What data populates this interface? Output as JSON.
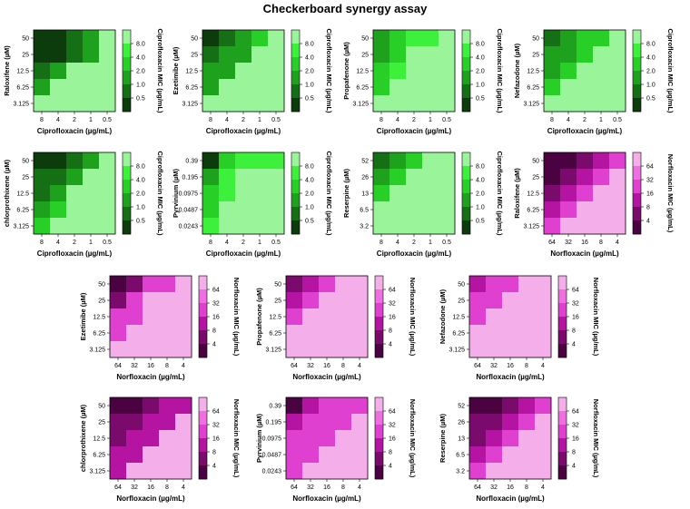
{
  "title": "Checkerboard synergy assay",
  "colors": {
    "green": [
      "#0c3b0c",
      "#157015",
      "#1ea21e",
      "#27cf27",
      "#3cf03c",
      "#9af59a"
    ],
    "magenta": [
      "#4a0340",
      "#7a0a6b",
      "#b514a2",
      "#e040cf",
      "#f06fe0",
      "#f4aee9"
    ]
  },
  "chart_data": [
    {
      "type": "heatmap",
      "palette": "green",
      "xlabel": "Ciprofloxacin (µg/mL)",
      "ylabel": "Raloxifene (µM)",
      "cbar_label": "Ciprofloxacin MIC (µg/mL)",
      "x": [
        "8",
        "4",
        "2",
        "1",
        "0.5"
      ],
      "y": [
        "50",
        "25",
        "12.5",
        "6.25",
        "3.125"
      ],
      "cbar_ticks": [
        "8.0",
        "4.0",
        "2.0",
        "1.0",
        "0.5"
      ],
      "cells": [
        [
          0,
          0,
          1,
          2,
          5
        ],
        [
          0,
          0,
          1,
          2,
          5
        ],
        [
          1,
          2,
          5,
          5,
          5
        ],
        [
          2,
          5,
          5,
          5,
          5
        ],
        [
          5,
          5,
          5,
          5,
          5
        ]
      ]
    },
    {
      "type": "heatmap",
      "palette": "green",
      "xlabel": "Ciprofloxacin (µg/mL)",
      "ylabel": "Ezetimibe (µM)",
      "cbar_label": "Ciprofloxacin MIC (µg/mL)",
      "x": [
        "8",
        "4",
        "2",
        "1",
        "0.5"
      ],
      "y": [
        "50",
        "25",
        "12.5",
        "6.25",
        "3.125"
      ],
      "cbar_ticks": [
        "8.0",
        "4.0",
        "2.0",
        "1.0",
        "0.5"
      ],
      "cells": [
        [
          0,
          1,
          2,
          3,
          5
        ],
        [
          1,
          2,
          2,
          5,
          5
        ],
        [
          2,
          2,
          5,
          5,
          5
        ],
        [
          2,
          5,
          5,
          5,
          5
        ],
        [
          5,
          5,
          5,
          5,
          5
        ]
      ]
    },
    {
      "type": "heatmap",
      "palette": "green",
      "xlabel": "Ciprofloxacin (µg/mL)",
      "ylabel": "Propafenone (µM)",
      "cbar_label": "Ciprofloxacin MIC (µg/mL)",
      "x": [
        "8",
        "4",
        "2",
        "1",
        "0.5"
      ],
      "y": [
        "50",
        "25",
        "12.5",
        "6.25",
        "3.125"
      ],
      "cbar_ticks": [
        "8.0",
        "4.0",
        "2.0",
        "1.0",
        "0.5"
      ],
      "cells": [
        [
          2,
          3,
          4,
          4,
          5
        ],
        [
          2,
          3,
          5,
          5,
          5
        ],
        [
          3,
          4,
          5,
          5,
          5
        ],
        [
          3,
          5,
          5,
          5,
          5
        ],
        [
          5,
          5,
          5,
          5,
          5
        ]
      ]
    },
    {
      "type": "heatmap",
      "palette": "green",
      "xlabel": "Ciprofloxacin (µg/mL)",
      "ylabel": "Nefazodone (µM)",
      "cbar_label": "Ciprofloxacin MIC (µg/mL)",
      "x": [
        "8",
        "4",
        "2",
        "1",
        "0.5"
      ],
      "y": [
        "50",
        "25",
        "12.5",
        "6.25",
        "3.125"
      ],
      "cbar_ticks": [
        "8.0",
        "4.0",
        "2.0",
        "1.0",
        "0.5"
      ],
      "cells": [
        [
          1,
          2,
          3,
          3,
          5
        ],
        [
          2,
          2,
          3,
          5,
          5
        ],
        [
          2,
          3,
          5,
          5,
          5
        ],
        [
          3,
          5,
          5,
          5,
          5
        ],
        [
          5,
          5,
          5,
          5,
          5
        ]
      ]
    },
    {
      "type": "heatmap",
      "palette": "green",
      "xlabel": "Ciprofloxacin (µg/mL)",
      "ylabel": "chlorprothixene (µM)",
      "cbar_label": "Ciprofloxacin MIC (µg/mL)",
      "x": [
        "8",
        "4",
        "2",
        "1",
        "0.5"
      ],
      "y": [
        "50",
        "25",
        "12.5",
        "6.25",
        "3.125"
      ],
      "cbar_ticks": [
        "8.0",
        "4.0",
        "2.0",
        "1.0",
        "0.5"
      ],
      "cells": [
        [
          0,
          0,
          1,
          2,
          5
        ],
        [
          1,
          1,
          2,
          5,
          5
        ],
        [
          1,
          2,
          5,
          5,
          5
        ],
        [
          2,
          3,
          5,
          5,
          5
        ],
        [
          3,
          5,
          5,
          5,
          5
        ]
      ]
    },
    {
      "type": "heatmap",
      "palette": "green",
      "xlabel": "Ciprofloxacin (µg/mL)",
      "ylabel": "Pyrvinium (µM)",
      "cbar_label": "Ciprofloxacin MIC (µg/mL)",
      "x": [
        "8",
        "4",
        "2",
        "1",
        "0.5"
      ],
      "y": [
        "0.39",
        "0.195",
        "0.0975",
        "0.0487",
        "0.0243"
      ],
      "cbar_ticks": [
        "8.0",
        "4.0",
        "2.0",
        "1.0",
        "0.5"
      ],
      "cells": [
        [
          0,
          3,
          4,
          4,
          4
        ],
        [
          2,
          4,
          5,
          5,
          5
        ],
        [
          3,
          4,
          5,
          5,
          5
        ],
        [
          3,
          5,
          5,
          5,
          5
        ],
        [
          4,
          5,
          5,
          5,
          5
        ]
      ]
    },
    {
      "type": "heatmap",
      "palette": "green",
      "xlabel": "Ciprofloxacin (µg/mL)",
      "ylabel": "Reserpine (µM)",
      "cbar_label": "Ciprofloxacin MIC (µg/mL)",
      "x": [
        "8",
        "4",
        "2",
        "1",
        "0.5"
      ],
      "y": [
        "52",
        "26",
        "13",
        "6.5",
        "3.2"
      ],
      "cbar_ticks": [
        "8.0",
        "4.0",
        "2.0",
        "1.0",
        "0.5"
      ],
      "cells": [
        [
          1,
          2,
          3,
          5,
          5
        ],
        [
          2,
          3,
          5,
          5,
          5
        ],
        [
          3,
          5,
          5,
          5,
          5
        ],
        [
          5,
          5,
          5,
          5,
          5
        ],
        [
          5,
          5,
          5,
          5,
          5
        ]
      ]
    },
    {
      "type": "heatmap",
      "palette": "magenta",
      "xlabel": "Norfloxacin (µg/mL)",
      "ylabel": "Raloxifene (µM)",
      "cbar_label": "Norfloxacin MIC (µg/mL)",
      "x": [
        "64",
        "32",
        "16",
        "8",
        "4"
      ],
      "y": [
        "50",
        "25",
        "12.5",
        "6.25",
        "3.125"
      ],
      "cbar_ticks": [
        "64",
        "32",
        "16",
        "8",
        "4"
      ],
      "cells": [
        [
          0,
          0,
          1,
          2,
          3
        ],
        [
          0,
          1,
          2,
          3,
          5
        ],
        [
          1,
          2,
          3,
          5,
          5
        ],
        [
          2,
          3,
          5,
          5,
          5
        ],
        [
          3,
          5,
          5,
          5,
          5
        ]
      ]
    },
    {
      "type": "heatmap",
      "palette": "magenta",
      "xlabel": "Norfloxacin (µg/mL)",
      "ylabel": "Ezetimibe (µM)",
      "cbar_label": "Norfloxacin MIC (µg/mL)",
      "x": [
        "64",
        "32",
        "16",
        "8",
        "4"
      ],
      "y": [
        "50",
        "25",
        "12.5",
        "6.25",
        "3.125"
      ],
      "cbar_ticks": [
        "64",
        "32",
        "16",
        "8",
        "4"
      ],
      "cells": [
        [
          0,
          1,
          3,
          3,
          5
        ],
        [
          1,
          3,
          5,
          5,
          5
        ],
        [
          3,
          3,
          5,
          5,
          5
        ],
        [
          3,
          5,
          5,
          5,
          5
        ],
        [
          5,
          5,
          5,
          5,
          5
        ]
      ]
    },
    {
      "type": "heatmap",
      "palette": "magenta",
      "xlabel": "Norfloxacin (µg/mL)",
      "ylabel": "Propafenone (µM)",
      "cbar_label": "Norfloxacin MIC (µg/mL)",
      "x": [
        "64",
        "32",
        "16",
        "8",
        "4"
      ],
      "y": [
        "50",
        "25",
        "12.5",
        "6.25",
        "3.125"
      ],
      "cbar_ticks": [
        "64",
        "32",
        "16",
        "8",
        "4"
      ],
      "cells": [
        [
          1,
          2,
          3,
          5,
          5
        ],
        [
          2,
          3,
          5,
          5,
          5
        ],
        [
          3,
          5,
          5,
          5,
          5
        ],
        [
          5,
          5,
          5,
          5,
          5
        ],
        [
          5,
          5,
          5,
          5,
          5
        ]
      ]
    },
    {
      "type": "heatmap",
      "palette": "magenta",
      "xlabel": "Norfloxacin (µg/mL)",
      "ylabel": "Nefazodone (µM)",
      "cbar_label": "Norfloxacin MIC (µg/mL)",
      "x": [
        "64",
        "32",
        "16",
        "8",
        "4"
      ],
      "y": [
        "50",
        "25",
        "12.5",
        "6.25",
        "3.125"
      ],
      "cbar_ticks": [
        "64",
        "32",
        "16",
        "8",
        "4"
      ],
      "cells": [
        [
          2,
          3,
          3,
          5,
          5
        ],
        [
          3,
          3,
          5,
          5,
          5
        ],
        [
          3,
          5,
          5,
          5,
          5
        ],
        [
          5,
          5,
          5,
          5,
          5
        ],
        [
          5,
          5,
          5,
          5,
          5
        ]
      ]
    },
    {
      "type": "heatmap",
      "palette": "magenta",
      "xlabel": "Norfloxacin (µg/mL)",
      "ylabel": "chlorprothixene (µM)",
      "cbar_label": "Norfloxacin MIC (µg/mL)",
      "x": [
        "64",
        "32",
        "16",
        "8",
        "4"
      ],
      "y": [
        "50",
        "25",
        "12.5",
        "6.25",
        "3.125"
      ],
      "cbar_ticks": [
        "64",
        "32",
        "16",
        "8",
        "4"
      ],
      "cells": [
        [
          0,
          0,
          1,
          2,
          2
        ],
        [
          1,
          1,
          2,
          2,
          5
        ],
        [
          1,
          2,
          2,
          5,
          5
        ],
        [
          2,
          2,
          5,
          5,
          5
        ],
        [
          2,
          5,
          5,
          5,
          5
        ]
      ]
    },
    {
      "type": "heatmap",
      "palette": "magenta",
      "xlabel": "Norfloxacin (µg/mL)",
      "ylabel": "Pyrvinium (µM)",
      "cbar_label": "Norfloxacin MIC (µg/mL)",
      "x": [
        "64",
        "32",
        "16",
        "8",
        "4"
      ],
      "y": [
        "0.39",
        "0.195",
        "0.0975",
        "0.0487",
        "0.0243"
      ],
      "cbar_ticks": [
        "64",
        "32",
        "16",
        "8",
        "4"
      ],
      "cells": [
        [
          0,
          2,
          3,
          3,
          3
        ],
        [
          2,
          3,
          3,
          3,
          5
        ],
        [
          3,
          3,
          3,
          5,
          5
        ],
        [
          3,
          3,
          5,
          5,
          5
        ],
        [
          3,
          5,
          5,
          5,
          5
        ]
      ]
    },
    {
      "type": "heatmap",
      "palette": "magenta",
      "xlabel": "Norfloxacin (µg/mL)",
      "ylabel": "Reserpine (µM)",
      "cbar_label": "Norfloxacin MIC (µg/mL)",
      "x": [
        "64",
        "32",
        "16",
        "8",
        "4"
      ],
      "y": [
        "52",
        "26",
        "13",
        "6.5",
        "3.2"
      ],
      "cbar_ticks": [
        "64",
        "32",
        "16",
        "8",
        "4"
      ],
      "cells": [
        [
          0,
          0,
          1,
          2,
          3
        ],
        [
          1,
          1,
          2,
          3,
          5
        ],
        [
          1,
          2,
          3,
          5,
          5
        ],
        [
          2,
          3,
          5,
          5,
          5
        ],
        [
          3,
          5,
          5,
          5,
          5
        ]
      ]
    }
  ]
}
